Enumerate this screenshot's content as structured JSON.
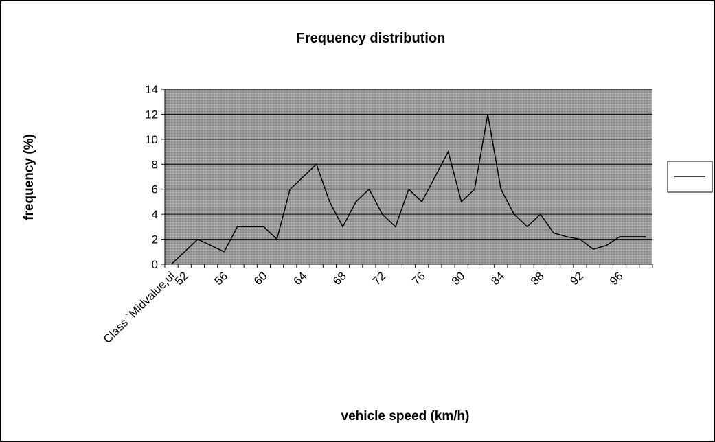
{
  "chart_data": {
    "type": "line",
    "title": "Frequency distribution",
    "x_label": "vehicle speed (km/h)",
    "y_label": "frequency (%)",
    "categories": [
      "Class `Midvalue,ui",
      "52",
      null,
      null,
      "56",
      null,
      null,
      "60",
      null,
      null,
      "64",
      null,
      null,
      "68",
      null,
      null,
      "72",
      null,
      null,
      "76",
      null,
      null,
      "80",
      null,
      null,
      "84",
      null,
      null,
      "88",
      null,
      null,
      "92",
      null,
      null,
      "96",
      null,
      null
    ],
    "series": [
      {
        "color": "#000000",
        "values": [
          0,
          1,
          2,
          1.5,
          1,
          3,
          3,
          3,
          2,
          6,
          7,
          8,
          5,
          3,
          5,
          6,
          4,
          3,
          6,
          5,
          7,
          9,
          5,
          6,
          12,
          6,
          4,
          3,
          4,
          2.5,
          2.2,
          2,
          1.2,
          1.5,
          2.2,
          2.2,
          2.2
        ]
      }
    ],
    "ylim": [
      0,
      14
    ],
    "yticks": [
      0,
      2,
      4,
      6,
      8,
      10,
      12,
      14
    ],
    "grid": true,
    "legend": "right"
  }
}
